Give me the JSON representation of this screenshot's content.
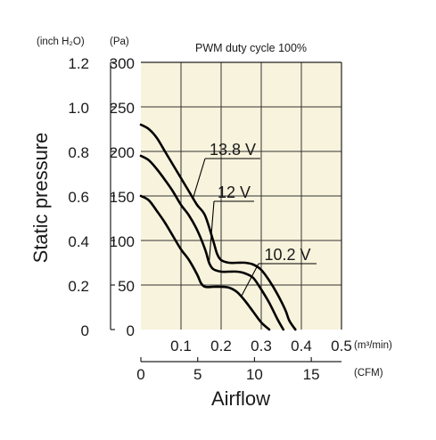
{
  "chart_data": {
    "type": "line",
    "title": "PWM duty cycle 100%",
    "ylabel": "Static pressure",
    "xlabel": "Airflow",
    "y_inch_unit": "(inch H₂O)",
    "y_pa_unit": "(Pa)",
    "x_m3_unit": "(m³/min)",
    "x_cfm_unit": "(CFM)",
    "xlim": [
      0,
      0.5
    ],
    "ylim": [
      0,
      300
    ],
    "grid": true,
    "y_pa_ticks": [
      "0",
      "50",
      "100",
      "150",
      "200",
      "250",
      "300"
    ],
    "y_inch_ticks": [
      "0",
      "0.2",
      "0.4",
      "0.6",
      "0.8",
      "1.0",
      "1.2"
    ],
    "x_m3_ticks": [
      "0.1",
      "0.2",
      "0.3",
      "0.4",
      "0.5"
    ],
    "x_cfm_ticks": [
      "0",
      "5",
      "10",
      "15"
    ],
    "series": [
      {
        "name": "13.8 V",
        "x": [
          0,
          0.02,
          0.04,
          0.06,
          0.08,
          0.1,
          0.12,
          0.14,
          0.16,
          0.18,
          0.19,
          0.2,
          0.22,
          0.24,
          0.26,
          0.28,
          0.3,
          0.32,
          0.34,
          0.36,
          0.37,
          0.385
        ],
        "y": [
          230,
          225,
          215,
          200,
          185,
          170,
          155,
          140,
          128,
          100,
          85,
          78,
          75,
          75,
          75,
          73,
          67,
          55,
          40,
          22,
          10,
          0
        ]
      },
      {
        "name": "12 V",
        "x": [
          0,
          0.02,
          0.04,
          0.06,
          0.08,
          0.1,
          0.12,
          0.14,
          0.16,
          0.17,
          0.18,
          0.2,
          0.22,
          0.24,
          0.26,
          0.28,
          0.3,
          0.32,
          0.34,
          0.355
        ],
        "y": [
          195,
          190,
          180,
          168,
          155,
          140,
          128,
          112,
          90,
          75,
          68,
          65,
          65,
          65,
          63,
          58,
          45,
          30,
          12,
          0
        ]
      },
      {
        "name": "10.2 V",
        "x": [
          0,
          0.02,
          0.04,
          0.06,
          0.08,
          0.1,
          0.12,
          0.14,
          0.15,
          0.16,
          0.18,
          0.2,
          0.22,
          0.24,
          0.26,
          0.28,
          0.3,
          0.32
        ],
        "y": [
          150,
          145,
          133,
          120,
          105,
          90,
          78,
          62,
          52,
          48,
          48,
          48,
          47,
          42,
          32,
          20,
          8,
          0
        ]
      }
    ]
  }
}
